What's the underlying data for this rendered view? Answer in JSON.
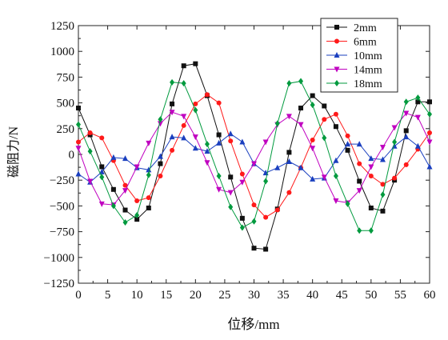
{
  "chart_data": {
    "type": "line",
    "xlabel": "位移/mm",
    "ylabel": "磁阻力/N",
    "xlim": [
      0,
      60
    ],
    "ylim": [
      -1250,
      1250
    ],
    "xticks": [
      "0",
      "5",
      "10",
      "15",
      "20",
      "25",
      "30",
      "35",
      "40",
      "45",
      "50",
      "55",
      "60"
    ],
    "yticks": [
      "1250",
      "1000",
      "750",
      "500",
      "250",
      "0",
      "−250",
      "−500",
      "−750",
      "−1000",
      "−1250"
    ],
    "grid": false,
    "legend_position": "top-right",
    "x": [
      0,
      2,
      4,
      6,
      8,
      10,
      12,
      14,
      16,
      18,
      20,
      22,
      24,
      26,
      28,
      30,
      32,
      34,
      36,
      38,
      40,
      42,
      44,
      46,
      48,
      50,
      52,
      54,
      56,
      58,
      60
    ],
    "series": [
      {
        "name": "2mm",
        "color": "#111111",
        "marker": "square",
        "values": [
          450,
          190,
          -120,
          -340,
          -540,
          -630,
          -520,
          -90,
          490,
          860,
          880,
          570,
          190,
          -220,
          -620,
          -910,
          -920,
          -530,
          20,
          450,
          570,
          470,
          270,
          40,
          -260,
          -520,
          -550,
          -250,
          230,
          510,
          510
        ]
      },
      {
        "name": "6mm",
        "color": "#ff1a1a",
        "marker": "circle",
        "values": [
          120,
          210,
          160,
          -60,
          -300,
          -450,
          -420,
          -210,
          40,
          280,
          490,
          580,
          500,
          130,
          -190,
          -490,
          -610,
          -540,
          -370,
          -130,
          140,
          340,
          390,
          180,
          -90,
          -210,
          -290,
          -230,
          -100,
          50,
          210
        ]
      },
      {
        "name": "10mm",
        "color": "#1a3fbf",
        "marker": "triangle-up",
        "values": [
          -190,
          -270,
          -170,
          -30,
          -40,
          -130,
          -150,
          -20,
          170,
          160,
          60,
          30,
          110,
          200,
          120,
          -90,
          -180,
          -130,
          -70,
          -130,
          -240,
          -230,
          -60,
          100,
          100,
          -40,
          -50,
          80,
          170,
          80,
          -120
        ]
      },
      {
        "name": "14mm",
        "color": "#c000c0",
        "marker": "triangle-down",
        "values": [
          60,
          -260,
          -480,
          -490,
          -350,
          -120,
          110,
          300,
          410,
          370,
          170,
          -80,
          -340,
          -370,
          -270,
          -90,
          120,
          290,
          370,
          290,
          60,
          -220,
          -450,
          -470,
          -350,
          -120,
          70,
          260,
          400,
          360,
          120
        ]
      },
      {
        "name": "18mm",
        "color": "#009a3e",
        "marker": "diamond",
        "values": [
          290,
          30,
          -220,
          -500,
          -660,
          -590,
          -200,
          340,
          700,
          690,
          430,
          100,
          -210,
          -510,
          -710,
          -650,
          -260,
          300,
          690,
          710,
          480,
          160,
          -210,
          -480,
          -740,
          -740,
          -390,
          120,
          510,
          550,
          390
        ]
      }
    ]
  }
}
